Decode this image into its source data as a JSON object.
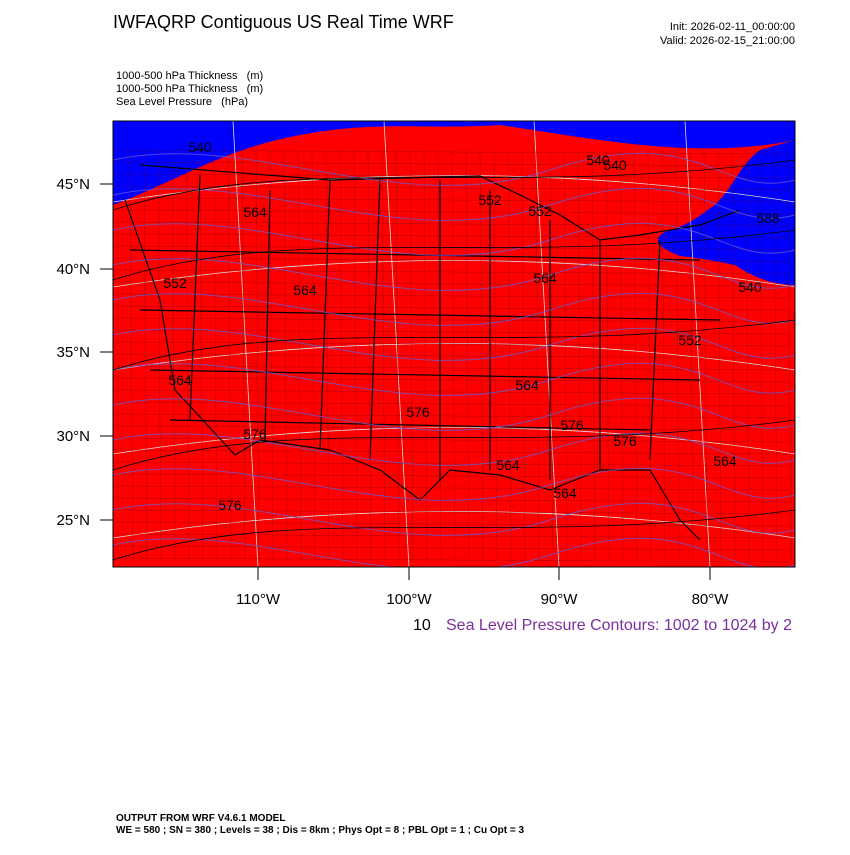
{
  "header": {
    "title": "IWFAQRP Contiguous US Real Time WRF",
    "init": "Init: 2026-02-11_00:00:00",
    "valid": "Valid: 2026-02-15_21:00:00"
  },
  "fields": [
    "1000-500 hPa Thickness   (m)",
    "1000-500 hPa Thickness   (m)",
    "Sea Level Pressure   (hPa)"
  ],
  "map": {
    "lat_labels": [
      "45°N",
      "40°N",
      "35°N",
      "30°N",
      "25°N"
    ],
    "lon_labels": [
      "110°W",
      "100°W",
      "90°W",
      "80°W"
    ],
    "contour_labels": [
      "540",
      "540",
      "540",
      "540",
      "552",
      "552",
      "552",
      "552",
      "564",
      "564",
      "564",
      "564",
      "564",
      "564",
      "564",
      "564",
      "576",
      "576",
      "576",
      "576",
      "576",
      "588"
    ]
  },
  "contour_note_prefix": "10",
  "contour_note": "Sea Level Pressure Contours: 1002 to 1024 by 2",
  "footer": {
    "model": "OUTPUT FROM WRF V4.6.1 MODEL",
    "settings": "WE = 580 ; SN = 380 ; Levels = 38 ; Dis = 8km ; Phys Opt = 8 ; PBL Opt = 1 ; Cu Opt = 3"
  }
}
